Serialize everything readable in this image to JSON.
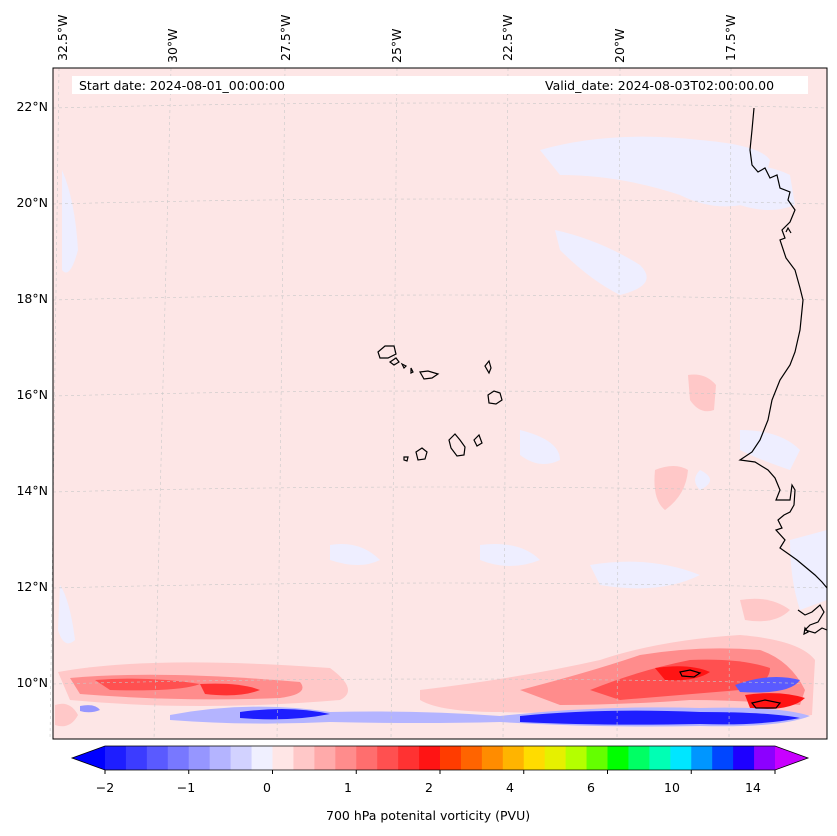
{
  "map": {
    "lon_labels": [
      "32.5°W",
      "30°W",
      "27.5°W",
      "25°W",
      "22.5°W",
      "20°W",
      "17.5°W"
    ],
    "lat_labels": [
      "22°N",
      "20°N",
      "18°N",
      "16°N",
      "14°N",
      "12°N",
      "10°N"
    ],
    "start_date": "Start date: 2024-08-01_00:00:00",
    "valid_date": "Valid_date: 2024-08-03T02:00:00.00",
    "background_color": "#fde6e6",
    "coast_color": "#000000"
  },
  "colorbar": {
    "label": "700 hPa potenital vorticity (PVU)",
    "ticks": [
      "−2",
      "−1",
      "0",
      "1",
      "2",
      "4",
      "6",
      "10",
      "14"
    ],
    "colors": [
      "#1e1eff",
      "#3c3cff",
      "#5a5aff",
      "#7878ff",
      "#9696ff",
      "#b4b4ff",
      "#d2d2ff",
      "#f0f0ff",
      "#ffe6e6",
      "#ffc8c8",
      "#ffaaaa",
      "#ff8c8c",
      "#ff6e6e",
      "#ff5050",
      "#ff3232",
      "#ff1414",
      "#ff3c00",
      "#ff6400",
      "#ff8c00",
      "#ffb400",
      "#ffdc00",
      "#e6f000",
      "#b4ff00",
      "#64ff00",
      "#00ff00",
      "#00ff64",
      "#00ffb4",
      "#00e6ff",
      "#0096ff",
      "#0046ff",
      "#1e00ff",
      "#8c00ff"
    ],
    "min_color": "#0000ff",
    "max_color": "#c800ff"
  }
}
